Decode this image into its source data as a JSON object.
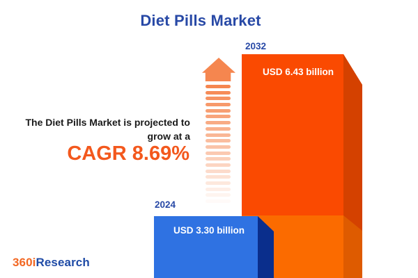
{
  "title": "Diet Pills Market",
  "description": {
    "line1": "The Diet Pills Market is projected to",
    "line2": "grow at a",
    "cagr_label": "CAGR 8.69%"
  },
  "chart_data": {
    "type": "bar",
    "title": "Diet Pills Market",
    "orientation": "vertical",
    "categories": [
      "2024",
      "2032"
    ],
    "values": [
      3.3,
      6.43
    ],
    "value_labels": [
      "USD 3.30 billion",
      "USD 6.43 billion"
    ],
    "unit": "USD billion",
    "cagr_percent": 8.69,
    "legend": "none",
    "grid": "off",
    "series_colors": [
      "#2F72E2",
      "#FA4A01"
    ]
  },
  "growth_arrow": {
    "dash_count": 20
  },
  "logo": {
    "part1": "360i",
    "part2": "Research"
  },
  "colors": {
    "background": "#FFFFFF",
    "title_blue": "#2849A6",
    "accent_orange": "#F3581D",
    "text_dark": "#1A1A1A",
    "label_white": "#FFFFFF",
    "bar2024_face": "#2F72E2",
    "bar2024_side": "#0A2E8C",
    "bar2032_face": "#FA4A01",
    "bar2032_face_bottom": "#FB6B00",
    "bar2032_side": "#D44100",
    "bar2032_side_bottom": "#DE5B00",
    "arrow_orange": "#F5864F",
    "logo_orange": "#F26722",
    "logo_blue": "#1F4BA6"
  }
}
